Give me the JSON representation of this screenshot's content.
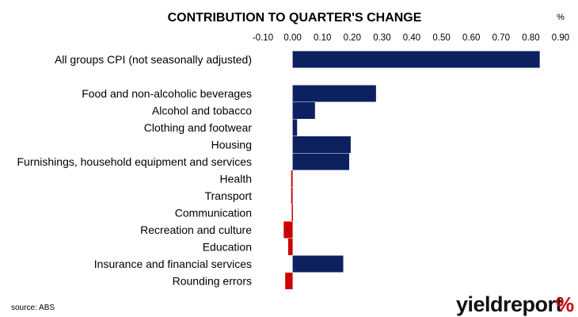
{
  "chart_data": {
    "type": "bar",
    "orientation": "horizontal",
    "title": "CONTRIBUTION TO QUARTER'S CHANGE",
    "unit_label": "%",
    "xlim": [
      -0.1,
      0.9
    ],
    "xticks": [
      -0.1,
      0.0,
      0.1,
      0.2,
      0.3,
      0.4,
      0.5,
      0.6,
      0.7,
      0.8,
      0.9
    ],
    "xtick_labels": [
      "-0.10",
      "0.00",
      "0.10",
      "0.20",
      "0.30",
      "0.40",
      "0.50",
      "0.60",
      "0.70",
      "0.80",
      "0.90"
    ],
    "grid": false,
    "legend": "none",
    "categories": [
      "All groups CPI (not seasonally adjusted)",
      "",
      "Food and non-alcoholic beverages",
      "Alcohol and tobacco",
      "Clothing and footwear",
      "Housing",
      "Furnishings, household equipment and services",
      "Health",
      "Transport",
      "Communication",
      "Recreation and culture",
      "Education",
      "Insurance and financial services",
      "Rounding errors"
    ],
    "values": [
      0.83,
      null,
      0.28,
      0.075,
      0.015,
      0.195,
      0.19,
      -0.005,
      -0.005,
      -0.003,
      -0.03,
      -0.015,
      0.17,
      -0.025
    ],
    "colors": {
      "positive": "#0d2160",
      "negative": "#cc0000"
    }
  },
  "footer": {
    "source": "source: ABS",
    "logo_text": "yieldreport",
    "logo_symbol": "%"
  }
}
